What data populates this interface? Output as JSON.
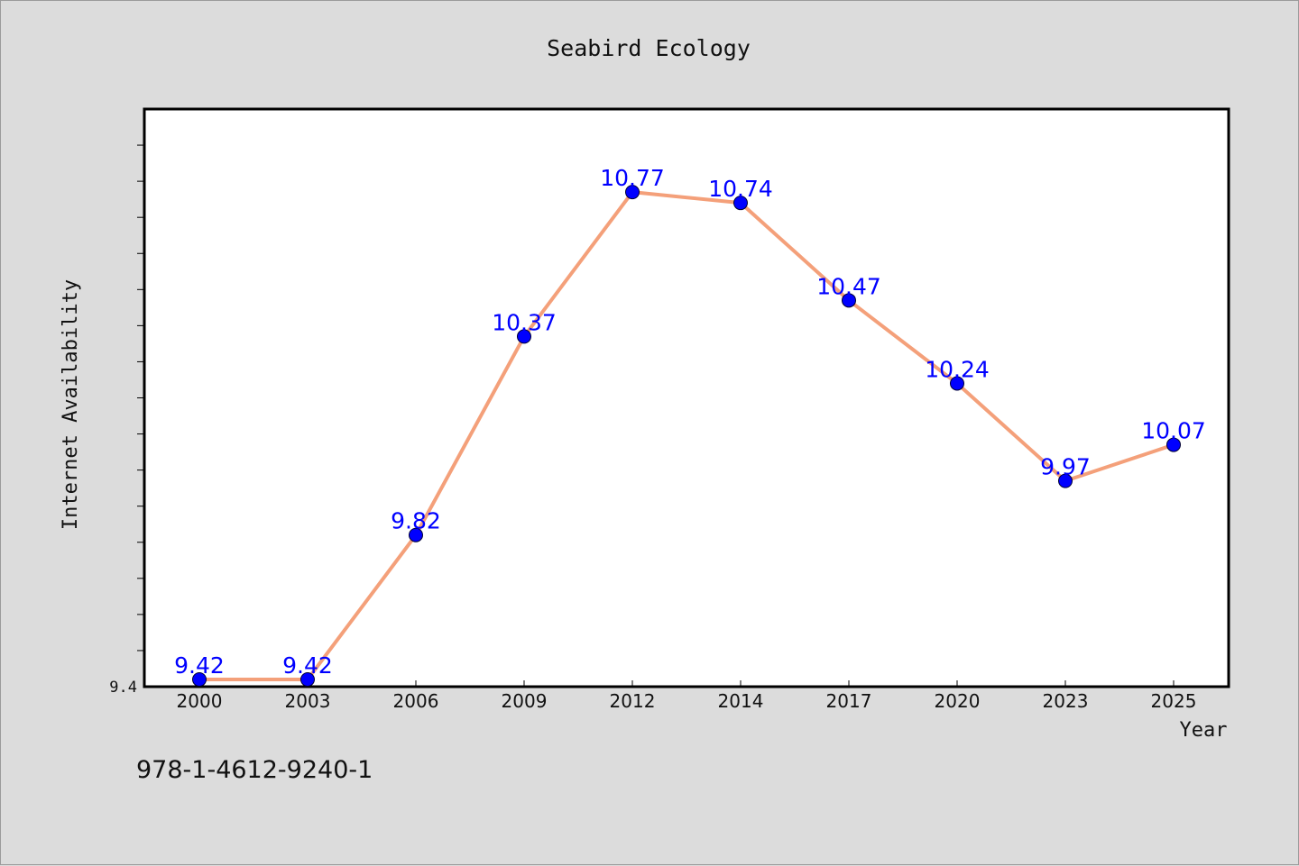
{
  "chart_data": {
    "type": "line",
    "title": "Seabird Ecology",
    "xlabel": "Year",
    "ylabel": "Internet Availability",
    "categories": [
      "2000",
      "2003",
      "2006",
      "2009",
      "2012",
      "2014",
      "2017",
      "2020",
      "2023",
      "2025"
    ],
    "series": [
      {
        "values": [
          9.42,
          9.42,
          9.82,
          10.37,
          10.77,
          10.74,
          10.47,
          10.24,
          9.97,
          10.07
        ],
        "data_labels": [
          "9.42",
          "9.42",
          "9.82",
          "10.37",
          "10.77",
          "10.74",
          "10.47",
          "10.24",
          "9.97",
          "10.07"
        ],
        "line_color": "#f4a07a",
        "marker_color": "#0000ff"
      }
    ],
    "ylim": [
      9.4,
      11.0
    ],
    "yticks_labeled": [
      "9.4"
    ],
    "grid": false,
    "legend": "none"
  },
  "footer": {
    "isbn": "978-1-4612-9240-1"
  },
  "colors": {
    "background": "#dcdcdc",
    "plot_area": "#ffffff",
    "line": "#f4a07a",
    "marker": "#0000ff",
    "data_label": "#0000ff"
  }
}
